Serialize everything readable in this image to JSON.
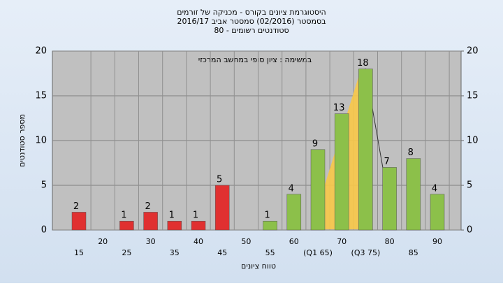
{
  "chart_data": {
    "type": "bar",
    "title": "היסטוגרמת ציונים בקורס - מכניקה של זורמים",
    "subtitle": "בסמסטר  (02/2016)  סמסטר אביב 2016/17",
    "subtitle2": "80 - סטודנטים רשומים",
    "annotation": "במשימה : ציון סופי במחשב המרכזי",
    "x_label": "טווח ציונים",
    "y_label": "מספר סטודנטים",
    "categories": [
      "15",
      "20",
      "25",
      "30",
      "35",
      "40",
      "45",
      "50",
      "55",
      "60",
      "(Q1 65)",
      "70",
      "(Q3 75)",
      "80",
      "85",
      "90"
    ],
    "values": [
      2,
      0,
      1,
      2,
      1,
      1,
      5,
      0,
      1,
      4,
      9,
      13,
      18,
      7,
      8,
      4
    ],
    "colors": [
      "#e03030",
      "#e03030",
      "#e03030",
      "#e03030",
      "#e03030",
      "#e03030",
      "#e03030",
      "#e03030",
      "#8cc04a",
      "#8cc04a",
      "#8cc04a",
      "#8cc04a",
      "#8cc04a",
      "#8cc04a",
      "#8cc04a",
      "#8cc04a"
    ],
    "ylim": [
      0,
      20
    ],
    "yticks": [
      0,
      5,
      10,
      15,
      20
    ],
    "y2lim": [
      0,
      20
    ],
    "y2ticks": [
      0,
      5,
      10,
      15,
      20
    ],
    "grid": true
  }
}
